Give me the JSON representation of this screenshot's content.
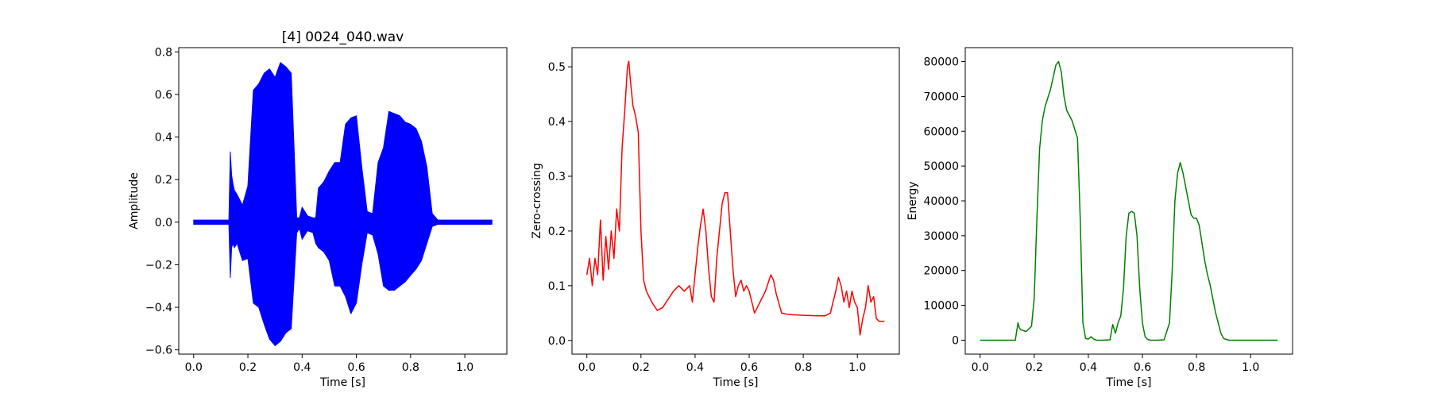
{
  "chart_data": [
    {
      "type": "line",
      "title": "[4] 0024_040.wav",
      "xlabel": "Time [s]",
      "ylabel": "Amplitude",
      "xlim": [
        -0.055,
        1.155
      ],
      "ylim": [
        -0.62,
        0.82
      ],
      "xticks": [
        0.0,
        0.2,
        0.4,
        0.6,
        0.8,
        1.0
      ],
      "xtick_labels": [
        "0.0",
        "0.2",
        "0.4",
        "0.6",
        "0.8",
        "1.0"
      ],
      "yticks": [
        -0.6,
        -0.4,
        -0.2,
        0.0,
        0.2,
        0.4,
        0.6,
        0.8
      ],
      "ytick_labels": [
        "−0.6",
        "−0.4",
        "−0.2",
        "0.0",
        "0.2",
        "0.4",
        "0.6",
        "0.8"
      ],
      "color": "#0000ff",
      "series": [
        {
          "render": "envelope",
          "x": [
            0.0,
            0.13,
            0.135,
            0.14,
            0.145,
            0.15,
            0.16,
            0.18,
            0.2,
            0.22,
            0.24,
            0.26,
            0.28,
            0.3,
            0.32,
            0.34,
            0.36,
            0.38,
            0.39,
            0.4,
            0.42,
            0.44,
            0.45,
            0.46,
            0.48,
            0.5,
            0.52,
            0.54,
            0.56,
            0.58,
            0.6,
            0.62,
            0.64,
            0.66,
            0.68,
            0.7,
            0.72,
            0.74,
            0.76,
            0.78,
            0.8,
            0.82,
            0.84,
            0.86,
            0.88,
            0.9,
            0.95,
            1.1
          ],
          "upper": [
            0.01,
            0.01,
            0.33,
            0.22,
            0.18,
            0.15,
            0.13,
            0.08,
            0.17,
            0.62,
            0.65,
            0.7,
            0.72,
            0.68,
            0.75,
            0.73,
            0.7,
            0.02,
            0.02,
            0.07,
            0.03,
            0.02,
            0.02,
            0.16,
            0.19,
            0.24,
            0.28,
            0.28,
            0.46,
            0.49,
            0.5,
            0.26,
            0.05,
            0.04,
            0.28,
            0.35,
            0.52,
            0.51,
            0.5,
            0.47,
            0.46,
            0.44,
            0.38,
            0.26,
            0.04,
            0.01,
            0.01,
            0.01
          ],
          "lower": [
            -0.01,
            -0.01,
            -0.26,
            -0.12,
            -0.1,
            -0.12,
            -0.1,
            -0.18,
            -0.17,
            -0.38,
            -0.4,
            -0.48,
            -0.55,
            -0.58,
            -0.56,
            -0.52,
            -0.5,
            -0.05,
            -0.03,
            -0.08,
            -0.04,
            -0.05,
            -0.1,
            -0.12,
            -0.14,
            -0.18,
            -0.3,
            -0.3,
            -0.35,
            -0.43,
            -0.38,
            -0.2,
            -0.05,
            -0.06,
            -0.15,
            -0.3,
            -0.32,
            -0.32,
            -0.3,
            -0.28,
            -0.25,
            -0.22,
            -0.18,
            -0.1,
            -0.02,
            -0.01,
            -0.01,
            -0.01
          ]
        }
      ]
    },
    {
      "type": "line",
      "title": "",
      "xlabel": "Time [s]",
      "ylabel": "Zero-crossing",
      "xlim": [
        -0.055,
        1.155
      ],
      "ylim": [
        -0.025,
        0.535
      ],
      "xticks": [
        0.0,
        0.2,
        0.4,
        0.6,
        0.8,
        1.0
      ],
      "xtick_labels": [
        "0.0",
        "0.2",
        "0.4",
        "0.6",
        "0.8",
        "1.0"
      ],
      "yticks": [
        0.0,
        0.1,
        0.2,
        0.3,
        0.4,
        0.5
      ],
      "ytick_labels": [
        "0.0",
        "0.1",
        "0.2",
        "0.3",
        "0.4",
        "0.5"
      ],
      "color": "#ff0000",
      "series": [
        {
          "render": "line",
          "x": [
            0.0,
            0.01,
            0.02,
            0.03,
            0.04,
            0.05,
            0.06,
            0.07,
            0.08,
            0.09,
            0.1,
            0.11,
            0.12,
            0.13,
            0.14,
            0.15,
            0.155,
            0.16,
            0.17,
            0.18,
            0.19,
            0.2,
            0.21,
            0.22,
            0.24,
            0.26,
            0.28,
            0.3,
            0.32,
            0.34,
            0.36,
            0.38,
            0.39,
            0.4,
            0.41,
            0.42,
            0.43,
            0.44,
            0.45,
            0.46,
            0.47,
            0.48,
            0.49,
            0.5,
            0.51,
            0.52,
            0.53,
            0.54,
            0.55,
            0.56,
            0.57,
            0.58,
            0.59,
            0.6,
            0.62,
            0.64,
            0.66,
            0.68,
            0.69,
            0.7,
            0.72,
            0.74,
            0.76,
            0.8,
            0.85,
            0.88,
            0.9,
            0.92,
            0.93,
            0.94,
            0.95,
            0.96,
            0.97,
            0.98,
            0.99,
            1.0,
            1.01,
            1.02,
            1.03,
            1.04,
            1.05,
            1.06,
            1.07,
            1.08,
            1.09,
            1.1
          ],
          "y": [
            0.12,
            0.15,
            0.1,
            0.15,
            0.12,
            0.22,
            0.11,
            0.19,
            0.13,
            0.2,
            0.15,
            0.24,
            0.2,
            0.35,
            0.42,
            0.5,
            0.51,
            0.48,
            0.43,
            0.41,
            0.38,
            0.2,
            0.11,
            0.09,
            0.07,
            0.055,
            0.06,
            0.075,
            0.09,
            0.1,
            0.09,
            0.1,
            0.07,
            0.12,
            0.17,
            0.21,
            0.24,
            0.2,
            0.13,
            0.08,
            0.07,
            0.15,
            0.2,
            0.25,
            0.27,
            0.27,
            0.2,
            0.13,
            0.08,
            0.1,
            0.11,
            0.09,
            0.1,
            0.09,
            0.05,
            0.07,
            0.09,
            0.12,
            0.11,
            0.085,
            0.05,
            0.048,
            0.047,
            0.046,
            0.045,
            0.045,
            0.05,
            0.09,
            0.115,
            0.1,
            0.07,
            0.09,
            0.06,
            0.09,
            0.07,
            0.06,
            0.01,
            0.04,
            0.06,
            0.1,
            0.07,
            0.08,
            0.04,
            0.035,
            0.035,
            0.035
          ]
        }
      ]
    },
    {
      "type": "line",
      "title": "",
      "xlabel": "Time [s]",
      "ylabel": "Energy",
      "xlim": [
        -0.055,
        1.155
      ],
      "ylim": [
        -4000,
        84000
      ],
      "xticks": [
        0.0,
        0.2,
        0.4,
        0.6,
        0.8,
        1.0
      ],
      "xtick_labels": [
        "0.0",
        "0.2",
        "0.4",
        "0.6",
        "0.8",
        "1.0"
      ],
      "yticks": [
        0,
        10000,
        20000,
        30000,
        40000,
        50000,
        60000,
        70000,
        80000
      ],
      "ytick_labels": [
        "0",
        "10000",
        "20000",
        "30000",
        "40000",
        "50000",
        "60000",
        "70000",
        "80000"
      ],
      "color": "#008000",
      "series": [
        {
          "render": "line",
          "x": [
            0.0,
            0.13,
            0.135,
            0.14,
            0.145,
            0.15,
            0.17,
            0.19,
            0.2,
            0.21,
            0.22,
            0.23,
            0.24,
            0.26,
            0.28,
            0.29,
            0.3,
            0.31,
            0.32,
            0.34,
            0.36,
            0.37,
            0.38,
            0.39,
            0.4,
            0.41,
            0.42,
            0.43,
            0.45,
            0.48,
            0.49,
            0.5,
            0.51,
            0.52,
            0.53,
            0.54,
            0.55,
            0.56,
            0.57,
            0.58,
            0.59,
            0.6,
            0.61,
            0.62,
            0.63,
            0.65,
            0.68,
            0.7,
            0.71,
            0.72,
            0.73,
            0.74,
            0.75,
            0.76,
            0.77,
            0.78,
            0.79,
            0.8,
            0.81,
            0.82,
            0.83,
            0.84,
            0.85,
            0.86,
            0.87,
            0.88,
            0.89,
            0.9,
            0.92,
            0.95,
            1.1
          ],
          "y": [
            0,
            0,
            2500,
            5000,
            3500,
            3000,
            2500,
            4000,
            12000,
            35000,
            55000,
            63000,
            67000,
            72000,
            79000,
            80000,
            77000,
            70000,
            66000,
            63000,
            58000,
            35000,
            5000,
            500,
            300,
            1000,
            300,
            0,
            0,
            100,
            4500,
            2000,
            5000,
            7000,
            15000,
            30000,
            36500,
            37000,
            36500,
            30000,
            15000,
            5000,
            1000,
            200,
            0,
            0,
            100,
            5000,
            20000,
            40000,
            48000,
            51000,
            48000,
            44000,
            40000,
            36000,
            35000,
            35000,
            33000,
            28000,
            23000,
            19000,
            16000,
            12000,
            8000,
            5000,
            2000,
            500,
            0,
            0,
            0
          ]
        }
      ]
    }
  ]
}
